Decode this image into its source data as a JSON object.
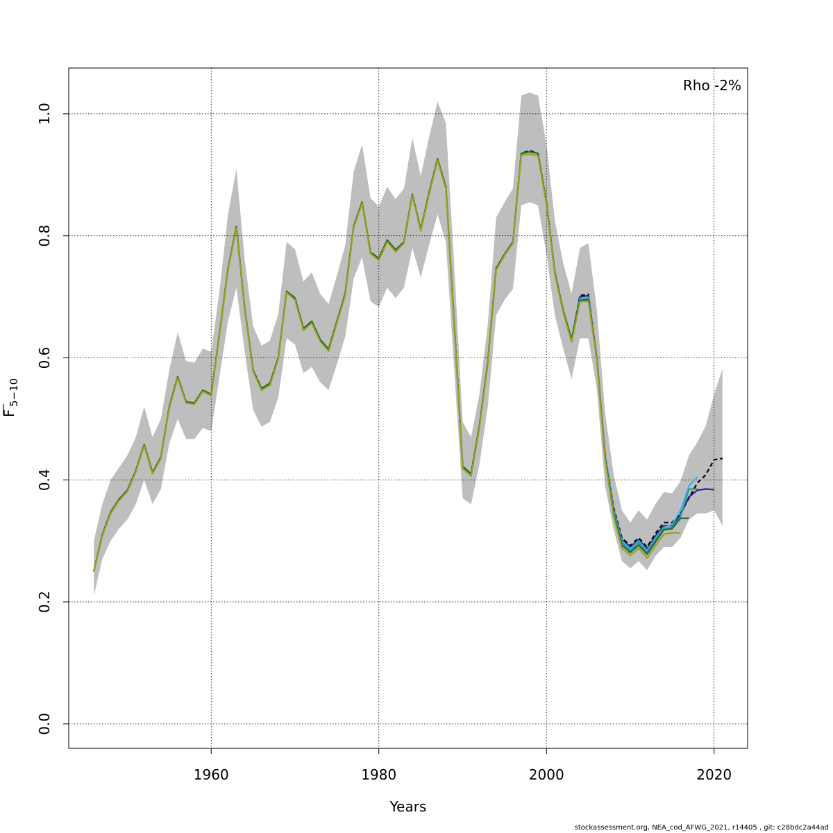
{
  "chart_data": {
    "type": "line",
    "title": "",
    "xlabel": "Years",
    "ylabel_main": "F",
    "ylabel_sub": "5−10",
    "annotation": "Rho -2%",
    "xlim": [
      1943,
      2024
    ],
    "ylim": [
      -0.04,
      1.075
    ],
    "x_ticks": [
      1960,
      1980,
      2000,
      2020
    ],
    "x_tick_labels": [
      "1960",
      "1980",
      "2000",
      "2020"
    ],
    "y_ticks": [
      0.0,
      0.2,
      0.4,
      0.6,
      0.8,
      1.0
    ],
    "y_tick_labels": [
      "0.0",
      "0.2",
      "0.4",
      "0.6",
      "0.8",
      "1.0"
    ],
    "grid": true,
    "band_color": "#bebebe",
    "band": {
      "x": [
        1946,
        1947,
        1948,
        1949,
        1950,
        1951,
        1952,
        1953,
        1954,
        1955,
        1956,
        1957,
        1958,
        1959,
        1960,
        1961,
        1962,
        1963,
        1964,
        1965,
        1966,
        1967,
        1968,
        1969,
        1970,
        1971,
        1972,
        1973,
        1974,
        1975,
        1976,
        1977,
        1978,
        1979,
        1980,
        1981,
        1982,
        1983,
        1984,
        1985,
        1986,
        1987,
        1988,
        1989,
        1990,
        1991,
        1992,
        1993,
        1994,
        1995,
        1996,
        1997,
        1998,
        1999,
        2000,
        2001,
        2002,
        2003,
        2004,
        2005,
        2006,
        2007,
        2008,
        2009,
        2010,
        2011,
        2012,
        2013,
        2014,
        2015,
        2016,
        2017,
        2018,
        2019,
        2020,
        2021
      ],
      "lower": [
        0.21,
        0.27,
        0.3,
        0.32,
        0.335,
        0.36,
        0.4,
        0.36,
        0.385,
        0.46,
        0.5,
        0.467,
        0.467,
        0.485,
        0.48,
        0.57,
        0.66,
        0.715,
        0.61,
        0.515,
        0.487,
        0.495,
        0.535,
        0.632,
        0.622,
        0.575,
        0.585,
        0.56,
        0.547,
        0.59,
        0.635,
        0.73,
        0.765,
        0.693,
        0.683,
        0.715,
        0.698,
        0.715,
        0.78,
        0.732,
        0.785,
        0.835,
        0.79,
        0.58,
        0.37,
        0.36,
        0.425,
        0.52,
        0.67,
        0.695,
        0.713,
        0.85,
        0.855,
        0.85,
        0.77,
        0.67,
        0.615,
        0.565,
        0.632,
        0.632,
        0.55,
        0.39,
        0.32,
        0.267,
        0.255,
        0.267,
        0.252,
        0.275,
        0.29,
        0.29,
        0.305,
        0.335,
        0.345,
        0.345,
        0.35,
        0.325
      ],
      "upper": [
        0.3,
        0.36,
        0.4,
        0.42,
        0.44,
        0.47,
        0.52,
        0.47,
        0.5,
        0.58,
        0.642,
        0.595,
        0.592,
        0.615,
        0.61,
        0.71,
        0.835,
        0.91,
        0.76,
        0.652,
        0.62,
        0.628,
        0.672,
        0.79,
        0.778,
        0.725,
        0.74,
        0.705,
        0.688,
        0.735,
        0.785,
        0.905,
        0.95,
        0.862,
        0.848,
        0.88,
        0.86,
        0.878,
        0.96,
        0.898,
        0.962,
        1.02,
        0.985,
        0.75,
        0.495,
        0.47,
        0.54,
        0.655,
        0.83,
        0.855,
        0.878,
        1.03,
        1.035,
        1.03,
        0.95,
        0.825,
        0.755,
        0.705,
        0.78,
        0.788,
        0.68,
        0.51,
        0.41,
        0.35,
        0.33,
        0.35,
        0.335,
        0.36,
        0.38,
        0.378,
        0.398,
        0.44,
        0.462,
        0.488,
        0.54,
        0.582
      ]
    },
    "series": [
      {
        "name": "black-dashed",
        "color": "#000000",
        "dash": true,
        "x": [
          1946,
          1947,
          1948,
          1949,
          1950,
          1951,
          1952,
          1953,
          1954,
          1955,
          1956,
          1957,
          1958,
          1959,
          1960,
          1961,
          1962,
          1963,
          1964,
          1965,
          1966,
          1967,
          1968,
          1969,
          1970,
          1971,
          1972,
          1973,
          1974,
          1975,
          1976,
          1977,
          1978,
          1979,
          1980,
          1981,
          1982,
          1983,
          1984,
          1985,
          1986,
          1987,
          1988,
          1989,
          1990,
          1991,
          1992,
          1993,
          1994,
          1995,
          1996,
          1997,
          1998,
          1999,
          2000,
          2001,
          2002,
          2003,
          2004,
          2005,
          2006,
          2007,
          2008,
          2009,
          2010,
          2011,
          2012,
          2013,
          2014,
          2015,
          2016,
          2017,
          2018,
          2019,
          2020,
          2021
        ],
        "y": [
          0.25,
          0.31,
          0.347,
          0.368,
          0.383,
          0.415,
          0.458,
          0.412,
          0.437,
          0.52,
          0.569,
          0.528,
          0.526,
          0.547,
          0.54,
          0.64,
          0.745,
          0.815,
          0.68,
          0.58,
          0.55,
          0.558,
          0.6,
          0.709,
          0.698,
          0.648,
          0.66,
          0.63,
          0.614,
          0.66,
          0.706,
          0.816,
          0.855,
          0.773,
          0.763,
          0.793,
          0.777,
          0.79,
          0.868,
          0.81,
          0.871,
          0.926,
          0.88,
          0.655,
          0.422,
          0.41,
          0.488,
          0.593,
          0.747,
          0.77,
          0.79,
          0.935,
          0.94,
          0.935,
          0.855,
          0.74,
          0.677,
          0.63,
          0.702,
          0.704,
          0.6,
          0.44,
          0.355,
          0.305,
          0.292,
          0.305,
          0.29,
          0.312,
          0.33,
          0.33,
          0.345,
          0.37,
          0.395,
          0.408,
          0.433,
          0.435
        ]
      },
      {
        "name": "dark-blue",
        "color": "#2c1f8f",
        "dash": false,
        "x": [
          2000,
          2001,
          2002,
          2003,
          2004,
          2005,
          2006,
          2007,
          2008,
          2009,
          2010,
          2011,
          2012,
          2013,
          2014,
          2015,
          2016,
          2017,
          2018,
          2019,
          2020
        ],
        "y": [
          0.855,
          0.74,
          0.677,
          0.63,
          0.7,
          0.702,
          0.6,
          0.44,
          0.352,
          0.302,
          0.29,
          0.302,
          0.287,
          0.308,
          0.325,
          0.325,
          0.343,
          0.372,
          0.383,
          0.385,
          0.384
        ]
      },
      {
        "name": "light-blue",
        "color": "#3fb4e6",
        "dash": false,
        "x": [
          2000,
          2001,
          2002,
          2003,
          2004,
          2005,
          2006,
          2007,
          2008,
          2009,
          2010,
          2011,
          2012,
          2013,
          2014,
          2015,
          2016,
          2017,
          2018
        ],
        "y": [
          0.855,
          0.74,
          0.677,
          0.63,
          0.697,
          0.699,
          0.6,
          0.44,
          0.35,
          0.3,
          0.287,
          0.3,
          0.284,
          0.305,
          0.322,
          0.327,
          0.35,
          0.39,
          0.405
        ]
      },
      {
        "name": "teal",
        "color": "#2a9d8f",
        "dash": false,
        "x": [
          2000,
          2001,
          2002,
          2003,
          2004,
          2005,
          2006,
          2007,
          2008,
          2009,
          2010,
          2011,
          2012,
          2013,
          2014,
          2015,
          2016,
          2017,
          2018
        ],
        "y": [
          0.855,
          0.74,
          0.677,
          0.63,
          0.695,
          0.697,
          0.6,
          0.438,
          0.348,
          0.297,
          0.284,
          0.297,
          0.281,
          0.302,
          0.32,
          0.322,
          0.34,
          0.385,
          0.385
        ]
      },
      {
        "name": "dark-green",
        "color": "#1e6b2f",
        "dash": false,
        "x": [
          1946,
          1947,
          1948,
          1949,
          1950,
          1951,
          1952,
          1953,
          1954,
          1955,
          1956,
          1957,
          1958,
          1959,
          1960,
          1961,
          1962,
          1963,
          1964,
          1965,
          1966,
          1967,
          1968,
          1969,
          1970,
          1971,
          1972,
          1973,
          1974,
          1975,
          1976,
          1977,
          1978,
          1979,
          1980,
          1981,
          1982,
          1983,
          1984,
          1985,
          1986,
          1987,
          1988,
          1989,
          1990,
          1991,
          1992,
          1993,
          1994,
          1995,
          1996,
          1997,
          1998,
          1999,
          2000,
          2001,
          2002,
          2003,
          2004,
          2005,
          2006,
          2007,
          2008,
          2009,
          2010,
          2011,
          2012,
          2013,
          2014,
          2015,
          2016,
          2017
        ],
        "y": [
          0.25,
          0.31,
          0.347,
          0.368,
          0.383,
          0.415,
          0.458,
          0.412,
          0.437,
          0.52,
          0.569,
          0.528,
          0.526,
          0.547,
          0.54,
          0.64,
          0.745,
          0.815,
          0.68,
          0.58,
          0.55,
          0.558,
          0.6,
          0.709,
          0.698,
          0.648,
          0.66,
          0.63,
          0.614,
          0.66,
          0.706,
          0.816,
          0.855,
          0.773,
          0.763,
          0.793,
          0.777,
          0.79,
          0.868,
          0.81,
          0.871,
          0.926,
          0.88,
          0.655,
          0.422,
          0.41,
          0.488,
          0.593,
          0.747,
          0.77,
          0.79,
          0.935,
          0.938,
          0.935,
          0.855,
          0.74,
          0.677,
          0.63,
          0.694,
          0.695,
          0.6,
          0.437,
          0.345,
          0.293,
          0.281,
          0.293,
          0.278,
          0.298,
          0.318,
          0.32,
          0.337,
          0.337
        ]
      },
      {
        "name": "olive",
        "color": "#9aa01e",
        "dash": false,
        "x": [
          1946,
          1947,
          1948,
          1949,
          1950,
          1951,
          1952,
          1953,
          1954,
          1955,
          1956,
          1957,
          1958,
          1959,
          1960,
          1961,
          1962,
          1963,
          1964,
          1965,
          1966,
          1967,
          1968,
          1969,
          1970,
          1971,
          1972,
          1973,
          1974,
          1975,
          1976,
          1977,
          1978,
          1979,
          1980,
          1981,
          1982,
          1983,
          1984,
          1985,
          1986,
          1987,
          1988,
          1989,
          1990,
          1991,
          1992,
          1993,
          1994,
          1995,
          1996,
          1997,
          1998,
          1999,
          2000,
          2001,
          2002,
          2003,
          2004,
          2005,
          2006,
          2007,
          2008,
          2009,
          2010,
          2011,
          2012,
          2013,
          2014,
          2015,
          2016
        ],
        "y": [
          0.249,
          0.308,
          0.345,
          0.366,
          0.381,
          0.413,
          0.456,
          0.41,
          0.435,
          0.518,
          0.567,
          0.526,
          0.524,
          0.545,
          0.538,
          0.638,
          0.743,
          0.813,
          0.678,
          0.578,
          0.547,
          0.555,
          0.598,
          0.707,
          0.695,
          0.645,
          0.657,
          0.627,
          0.611,
          0.657,
          0.703,
          0.814,
          0.853,
          0.771,
          0.76,
          0.79,
          0.774,
          0.788,
          0.866,
          0.808,
          0.868,
          0.924,
          0.877,
          0.652,
          0.419,
          0.406,
          0.485,
          0.59,
          0.744,
          0.768,
          0.788,
          0.932,
          0.934,
          0.931,
          0.852,
          0.737,
          0.674,
          0.626,
          0.692,
          0.693,
          0.597,
          0.433,
          0.341,
          0.288,
          0.276,
          0.288,
          0.272,
          0.292,
          0.311,
          0.313,
          0.313
        ]
      }
    ]
  },
  "footer": {
    "text": "stockassessment.org, NEA_cod_AFWG_2021, r14405 , git: c28bdc2a44ad"
  }
}
